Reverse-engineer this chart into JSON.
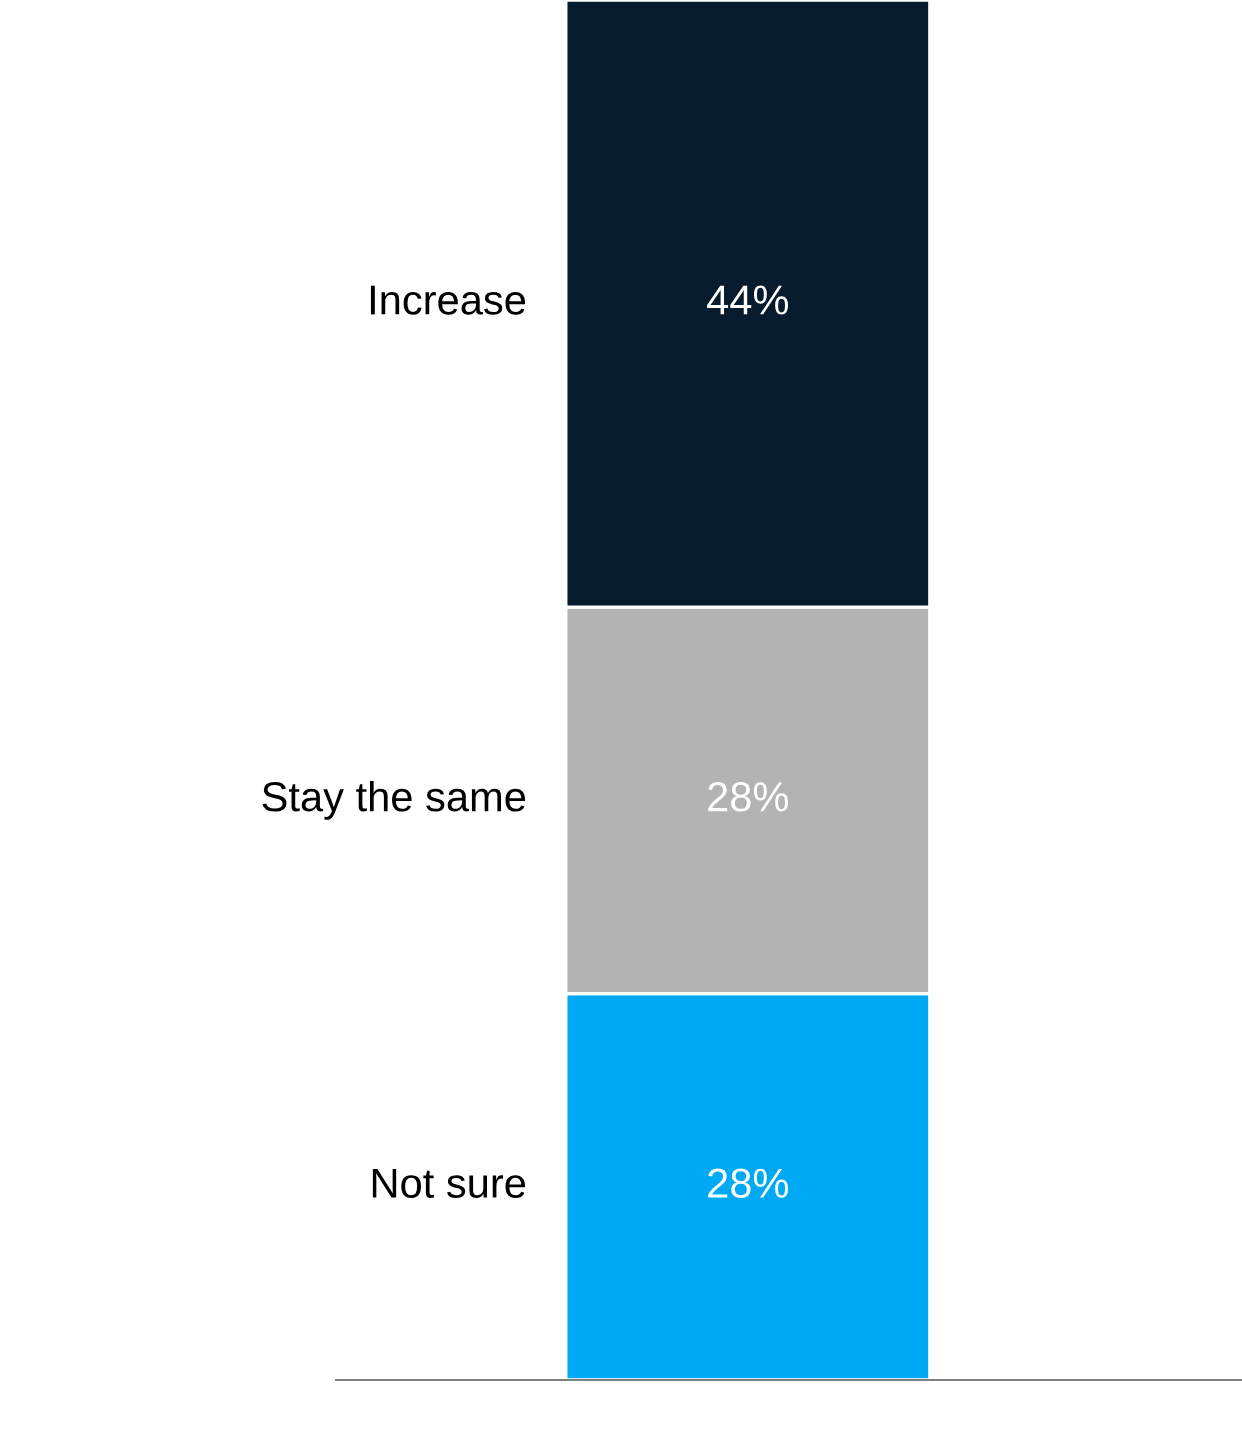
{
  "chart_data": {
    "type": "bar",
    "stacked": true,
    "categories": [
      null
    ],
    "series": [
      {
        "name": "Not sure",
        "color": "#00a9f4",
        "values": [
          28
        ],
        "value_labels": [
          "28%"
        ]
      },
      {
        "name": "Stay the same",
        "color": "#b3b3b3",
        "values": [
          28
        ],
        "value_labels": [
          "28%"
        ]
      },
      {
        "name": "Increase",
        "color": "#061c2e",
        "values": [
          44
        ],
        "value_labels": [
          "44%"
        ]
      }
    ],
    "grid": false,
    "legend": false
  }
}
